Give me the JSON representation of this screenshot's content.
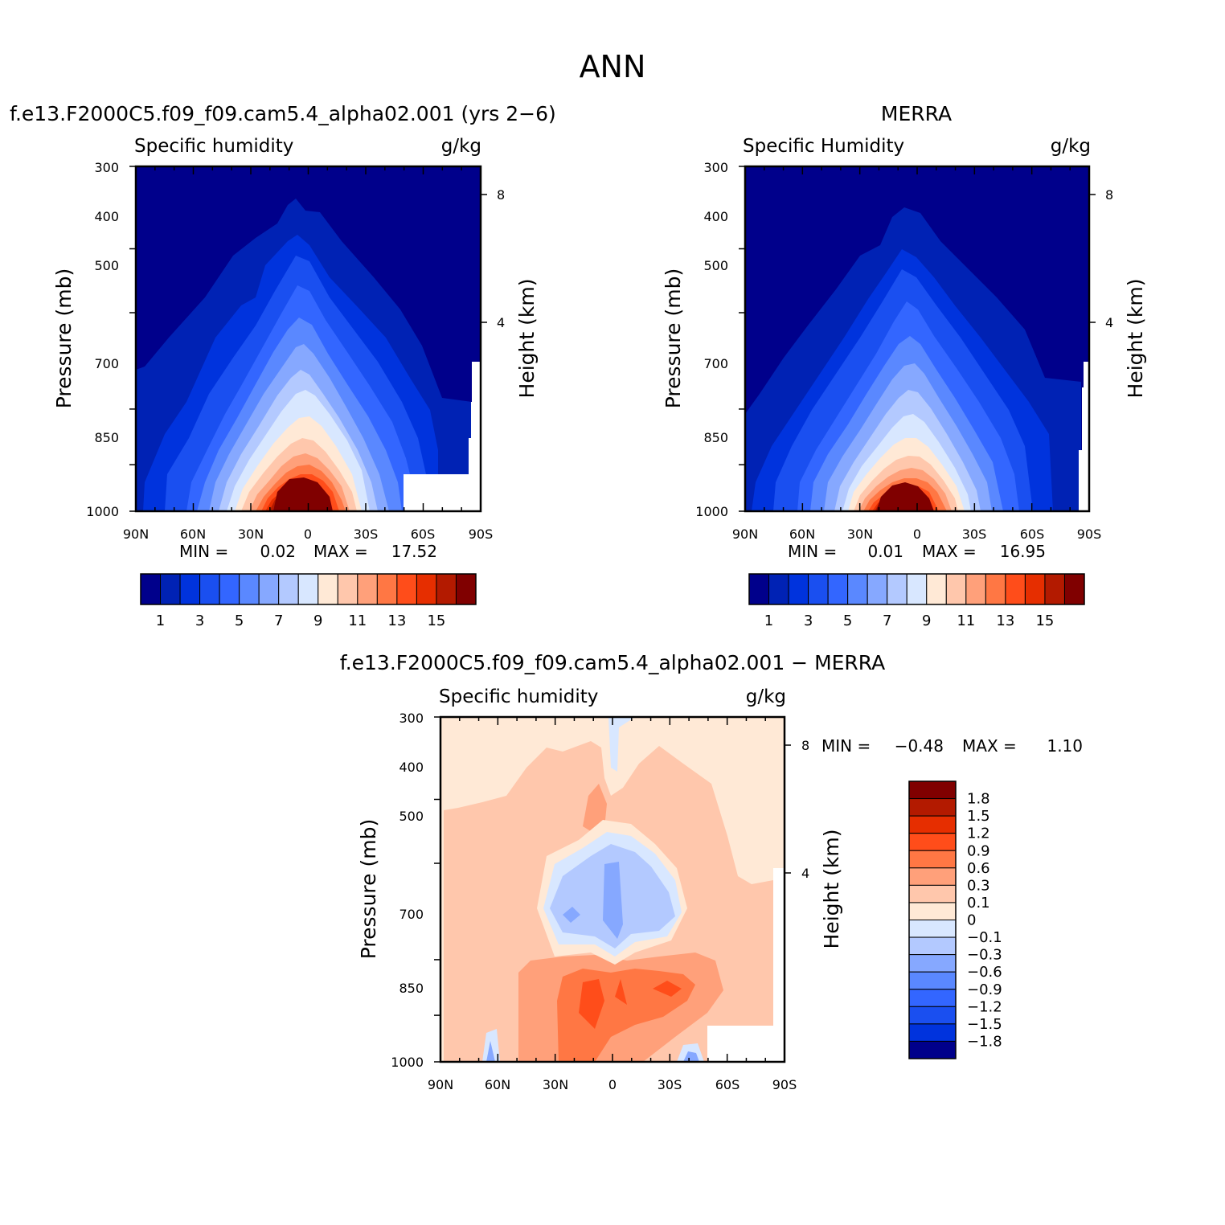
{
  "page": {
    "title": "ANN",
    "diff_title": "f.e13.F2000C5.f09_f09.cam5.4_alpha02.001 − MERRA"
  },
  "axes_common": {
    "x_ticks": [
      "90N",
      "60N",
      "30N",
      "0",
      "30S",
      "60S",
      "90S"
    ],
    "y_ticks": [
      "300",
      "400",
      "500",
      "700",
      "850",
      "1000"
    ],
    "height_ticks": [
      "8",
      "4"
    ],
    "ylabel": "Pressure (mb)",
    "y2label": "Height (km)",
    "variable_label": "Specific humidity",
    "units": "g/kg"
  },
  "chart_data": [
    {
      "type": "heatmap",
      "panel": "model",
      "title": "f.e13.F2000C5.f09_f09.cam5.4_alpha02.001 (yrs 2−6)",
      "left_label": "Specific humidity",
      "right_label": "g/kg",
      "ylabel": "Pressure (mb)",
      "y2label": "Height (km)",
      "x": [
        -90,
        -60,
        -30,
        0,
        30,
        60,
        90
      ],
      "y_pressure": [
        300,
        400,
        500,
        700,
        850,
        1000
      ],
      "min_label": "MIN =",
      "min": "0.02",
      "max_label": "MAX =",
      "max": "17.52",
      "colorbar_levels": [
        1,
        2,
        3,
        4,
        5,
        6,
        7,
        8,
        9,
        10,
        11,
        12,
        13,
        14,
        15
      ],
      "colorbar_tick_labels": [
        "1",
        "3",
        "5",
        "7",
        "9",
        "11",
        "13",
        "15"
      ],
      "colors": [
        "#00008b",
        "#0022b4",
        "#0033dd",
        "#1a4ff0",
        "#3366ff",
        "#5a88ff",
        "#86a8ff",
        "#b3c9ff",
        "#d8e7ff",
        "#ffe9d6",
        "#ffc7ac",
        "#ffa07a",
        "#ff7744",
        "#ff4d1a",
        "#e62e00",
        "#b31a00",
        "#800000"
      ]
    },
    {
      "type": "heatmap",
      "panel": "obs",
      "title": "MERRA",
      "left_label": "Specific Humidity",
      "right_label": "g/kg",
      "ylabel": "Pressure (mb)",
      "y2label": "Height (km)",
      "x": [
        -90,
        -60,
        -30,
        0,
        30,
        60,
        90
      ],
      "y_pressure": [
        300,
        400,
        500,
        700,
        850,
        1000
      ],
      "min_label": "MIN =",
      "min": "0.01",
      "max_label": "MAX =",
      "max": "16.95",
      "colorbar_levels": [
        1,
        2,
        3,
        4,
        5,
        6,
        7,
        8,
        9,
        10,
        11,
        12,
        13,
        14,
        15
      ],
      "colorbar_tick_labels": [
        "1",
        "3",
        "5",
        "7",
        "9",
        "11",
        "13",
        "15"
      ]
    },
    {
      "type": "heatmap",
      "panel": "difference",
      "left_label": "Specific humidity",
      "right_label": "g/kg",
      "ylabel": "Pressure (mb)",
      "y2label": "Height (km)",
      "x": [
        -90,
        -60,
        -30,
        0,
        30,
        60,
        90
      ],
      "y_pressure": [
        300,
        400,
        500,
        700,
        850,
        1000
      ],
      "min_label": "MIN =",
      "min": "−0.48",
      "max_label": "MAX =",
      "max": "1.10",
      "colorbar_levels": [
        1.8,
        1.5,
        1.2,
        0.9,
        0.6,
        0.3,
        0.1,
        0,
        -0.1,
        -0.3,
        -0.6,
        -0.9,
        -1.2,
        -1.5,
        -1.8
      ],
      "colorbar_tick_labels": [
        "1.8",
        "1.5",
        "1.2",
        "0.9",
        "0.6",
        "0.3",
        "0.1",
        "0",
        "−0.1",
        "−0.3",
        "−0.6",
        "−0.9",
        "−1.2",
        "−1.5",
        "−1.8"
      ],
      "colors": [
        "#800000",
        "#b31a00",
        "#e62e00",
        "#ff4d1a",
        "#ff7744",
        "#ffa07a",
        "#ffc7ac",
        "#ffe9d6",
        "#d8e7ff",
        "#b3c9ff",
        "#86a8ff",
        "#5a88ff",
        "#3366ff",
        "#1a4ff0",
        "#0033dd",
        "#00008b"
      ]
    }
  ]
}
